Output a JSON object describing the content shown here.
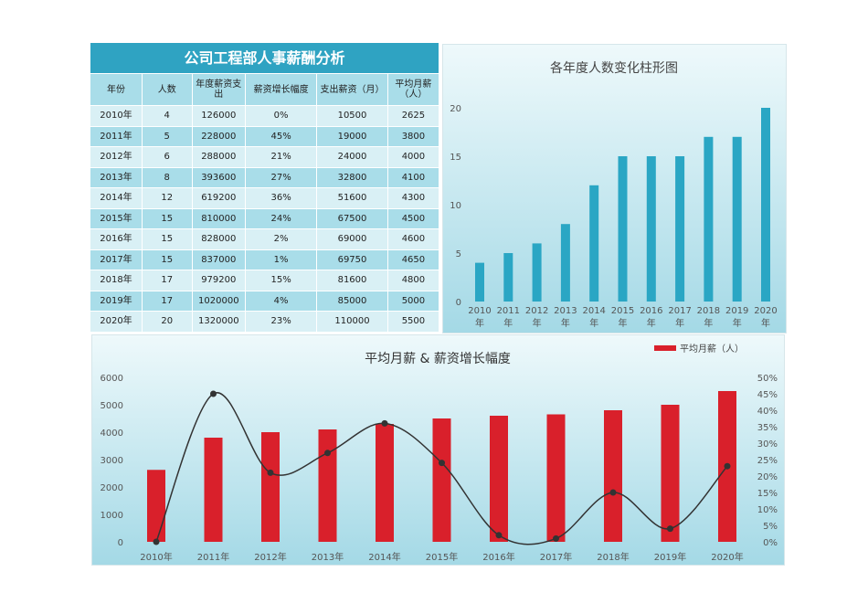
{
  "table": {
    "title": "公司工程部人事薪酬分析",
    "headers": [
      "年份",
      "人数",
      "年度薪资支出",
      "薪资增长幅度",
      "支出薪资（月）",
      "平均月薪（人）"
    ],
    "rows": [
      [
        "2010年",
        "4",
        "126000",
        "0%",
        "10500",
        "2625"
      ],
      [
        "2011年",
        "5",
        "228000",
        "45%",
        "19000",
        "3800"
      ],
      [
        "2012年",
        "6",
        "288000",
        "21%",
        "24000",
        "4000"
      ],
      [
        "2013年",
        "8",
        "393600",
        "27%",
        "32800",
        "4100"
      ],
      [
        "2014年",
        "12",
        "619200",
        "36%",
        "51600",
        "4300"
      ],
      [
        "2015年",
        "15",
        "810000",
        "24%",
        "67500",
        "4500"
      ],
      [
        "2016年",
        "15",
        "828000",
        "2%",
        "69000",
        "4600"
      ],
      [
        "2017年",
        "15",
        "837000",
        "1%",
        "69750",
        "4650"
      ],
      [
        "2018年",
        "17",
        "979200",
        "15%",
        "81600",
        "4800"
      ],
      [
        "2019年",
        "17",
        "1020000",
        "4%",
        "85000",
        "5000"
      ],
      [
        "2020年",
        "20",
        "1320000",
        "23%",
        "110000",
        "5500"
      ]
    ]
  },
  "chart_data": [
    {
      "type": "bar",
      "title": "各年度人数变化柱形图",
      "categories": [
        "2010年",
        "2011年",
        "2012年",
        "2013年",
        "2014年",
        "2015年",
        "2016年",
        "2017年",
        "2018年",
        "2019年",
        "2020年"
      ],
      "values": [
        4,
        5,
        6,
        8,
        12,
        15,
        15,
        15,
        17,
        17,
        20
      ],
      "ylim": [
        0,
        20
      ],
      "yticks": [
        0,
        5,
        10,
        15,
        20
      ],
      "color": "#2aa6c4",
      "grid": false
    },
    {
      "type": "bar+line",
      "title": "平均月薪 & 薪资增长幅度",
      "categories": [
        "2010年",
        "2011年",
        "2012年",
        "2013年",
        "2014年",
        "2015年",
        "2016年",
        "2017年",
        "2018年",
        "2019年",
        "2020年"
      ],
      "series": [
        {
          "name": "平均月薪（人）",
          "type": "bar",
          "axis": "left",
          "color": "#d9202b",
          "values": [
            2625,
            3800,
            4000,
            4100,
            4300,
            4500,
            4600,
            4650,
            4800,
            5000,
            5500
          ]
        },
        {
          "type": "line",
          "axis": "right",
          "smooth": true,
          "color": "#333333",
          "values": [
            0,
            45,
            21,
            27,
            36,
            24,
            2,
            1,
            15,
            4,
            23
          ]
        }
      ],
      "ylim_left": [
        0,
        6000
      ],
      "yticks_left": [
        "0",
        "1000",
        "2000",
        "3000",
        "4000",
        "5000",
        "6000"
      ],
      "ylim_right": [
        0,
        50
      ],
      "yticks_right": [
        "0%",
        "5%",
        "10%",
        "15%",
        "20%",
        "25%",
        "30%",
        "35%",
        "40%",
        "45%",
        "50%"
      ],
      "legend": "top-right",
      "grid": false
    }
  ]
}
